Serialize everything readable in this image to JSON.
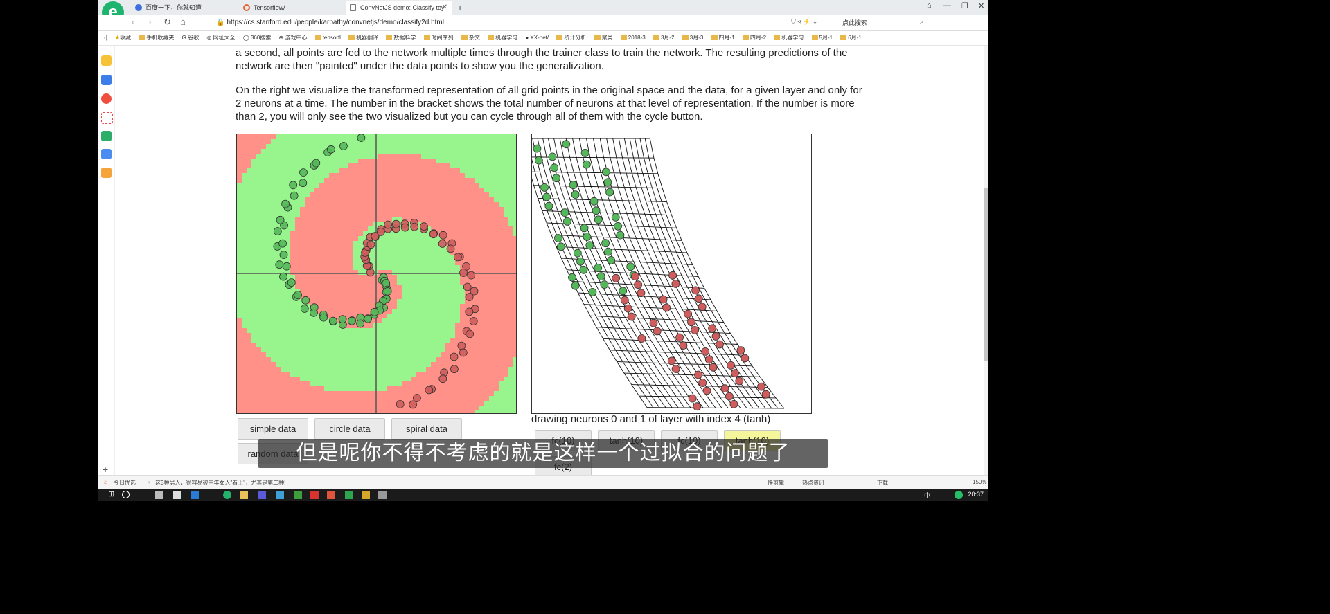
{
  "tabs": [
    {
      "title": "百度一下，你就知道",
      "icon_color": "#3b6fe0"
    },
    {
      "title": "Tensorflow/",
      "icon_color": "#e8622c"
    },
    {
      "title": "ConvNetJS demo: Classify toy",
      "icon_color": "#777777"
    }
  ],
  "address": {
    "url": "https://cs.stanford.edu/people/karpathy/convnetjs/demo/classify2d.html",
    "search_label": "点此搜索"
  },
  "bookmarks": [
    "收藏",
    "手机收藏夹",
    "谷歌",
    "网址大全",
    "360搜索",
    "游戏中心",
    "tensorfl",
    "机器翻译",
    "数据科学",
    "时间序列",
    "杂文",
    "机器学习",
    "XX-net/",
    "统计分析",
    "聚类",
    "2018-3",
    "3月-2",
    "3月-3",
    "四月-1",
    "四月-2",
    "机器学习",
    "5月-1",
    "6月-1"
  ],
  "content": {
    "para1": "a second, all points are fed to the network multiple times through the trainer class to train the network. The resulting predictions of the network are then \"painted\" under the data points to show you the generalization.",
    "para2": "On the right we visualize the transformed representation of all grid points in the original space and the data, for a given layer and only for 2 neurons at a time. The number in the bracket shows the total number of neurons at that level of representation. If the number is more than 2, you will only see the two visualized but you can cycle through all of them with the cycle button.",
    "caption": "drawing neurons 0 and 1 of layer with index 4 (tanh)",
    "data_buttons": [
      "simple data",
      "circle data",
      "spiral data",
      "random data"
    ],
    "layer_buttons": [
      "fc(10)",
      "tanh(10)",
      "fc(10)",
      "tanh(10)",
      "fc(2)"
    ],
    "colors": {
      "red_region": "#ff9189",
      "green_region": "#98f58e",
      "red_point": "#cf5d5d",
      "green_point": "#54b85a"
    }
  },
  "status": {
    "left": "今日优选",
    "news": "这3种男人，很容易被中年女人\"看上\"，尤其是第二种!",
    "right": [
      "快剪辑",
      "热点资讯",
      "下载",
      "150%"
    ]
  },
  "taskbar": {
    "time": "20:37",
    "ime": "中"
  },
  "subtitle": "但是呢你不得不考虑的就是这样一个过拟合的问题了"
}
